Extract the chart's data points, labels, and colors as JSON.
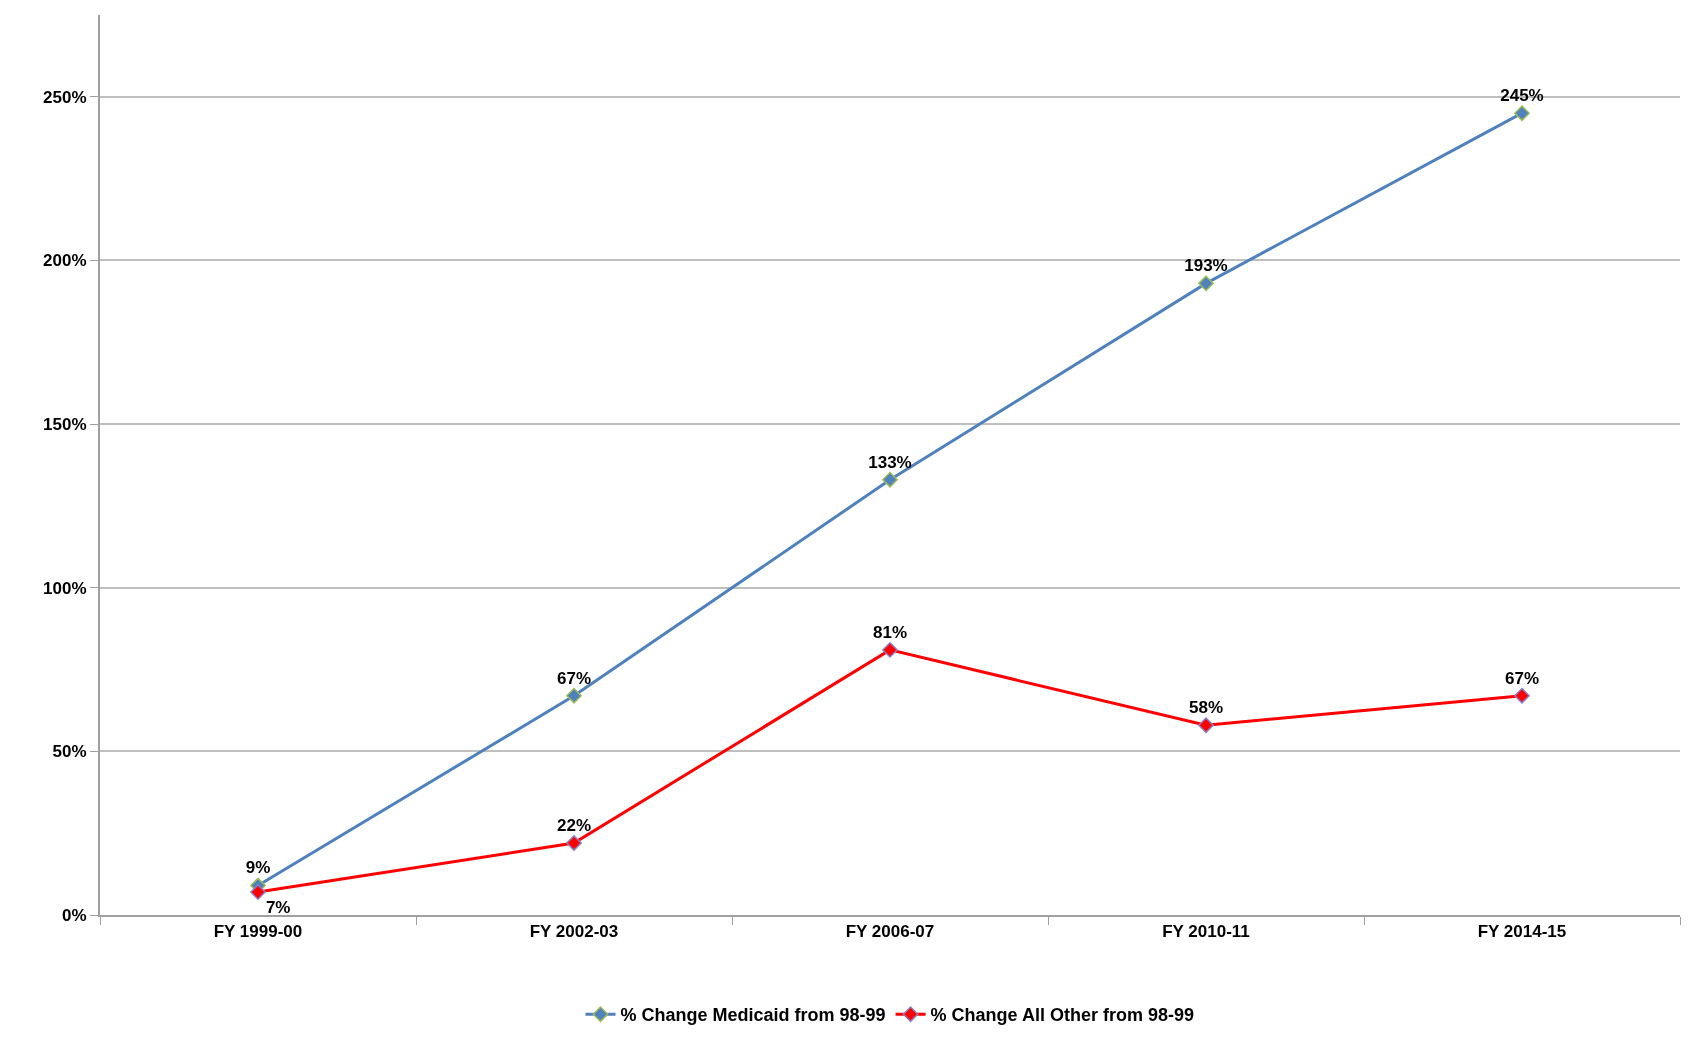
{
  "chart_data": {
    "type": "line",
    "categories": [
      "FY 1999-00",
      "FY 2002-03",
      "FY 2006-07",
      "FY 2010-11",
      "FY 2014-15"
    ],
    "series": [
      {
        "name": "% Change Medicaid from 98-99",
        "color": "#4f81bd",
        "values": [
          9,
          67,
          133,
          193,
          245
        ],
        "value_labels": [
          "9%",
          "67%",
          "133%",
          "193%",
          "245%"
        ]
      },
      {
        "name": "% Change All Other from 98-99",
        "color": "#ff0000",
        "values": [
          7,
          22,
          81,
          58,
          67
        ],
        "value_labels": [
          "7%",
          "22%",
          "81%",
          "58%",
          "67%"
        ]
      }
    ],
    "ylim": [
      0,
      275
    ],
    "yticks": [
      {
        "value": 0,
        "label": "0%"
      },
      {
        "value": 50,
        "label": "50%"
      },
      {
        "value": 100,
        "label": "100%"
      },
      {
        "value": 150,
        "label": "150%"
      },
      {
        "value": 200,
        "label": "200%"
      },
      {
        "value": 250,
        "label": "250%"
      }
    ],
    "grid": "y",
    "legend": "bottom",
    "marker": "diamond",
    "line_style": "solid"
  }
}
